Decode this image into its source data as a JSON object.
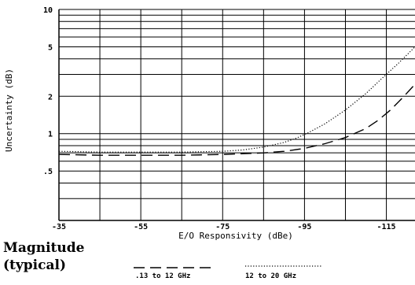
{
  "chart_data": {
    "type": "line",
    "title": "",
    "xlabel": "E/O Responsivity (dBe)",
    "ylabel": "Uncertainty (dB)",
    "x_ticks": [
      -35,
      -55,
      -75,
      -95,
      -115
    ],
    "x_tick_labels": [
      "-35",
      "-55",
      "-75",
      "-95",
      "-115"
    ],
    "y_tick_labels": [
      {
        "label": "10",
        "value": 10
      },
      {
        "label": "5",
        "value": 5
      },
      {
        "label": "2",
        "value": 2
      },
      {
        "label": "1",
        "value": 1
      },
      {
        "label": ".5",
        "value": 0.5
      }
    ],
    "y_scale": "log",
    "xlim": [
      -35,
      -122
    ],
    "ylim": [
      0.2,
      10
    ],
    "grid": true,
    "legend_placement": "bottom",
    "series": [
      {
        "name": ".13 to 12 GHz",
        "style": "dashed",
        "x": [
          -35,
          -45,
          -55,
          -65,
          -75,
          -85,
          -90,
          -95,
          -100,
          -105,
          -110,
          -113,
          -116,
          -119,
          -122
        ],
        "y": [
          0.68,
          0.67,
          0.67,
          0.67,
          0.68,
          0.7,
          0.72,
          0.76,
          0.83,
          0.93,
          1.1,
          1.28,
          1.55,
          1.95,
          2.5
        ]
      },
      {
        "name": "12 to 20 GHz",
        "style": "dotted",
        "x": [
          -35,
          -45,
          -55,
          -65,
          -75,
          -80,
          -85,
          -90,
          -93,
          -96,
          -100,
          -105,
          -110,
          -114,
          -118,
          -122
        ],
        "y": [
          0.72,
          0.71,
          0.71,
          0.71,
          0.72,
          0.74,
          0.78,
          0.85,
          0.92,
          1.02,
          1.2,
          1.55,
          2.1,
          2.8,
          3.7,
          5.0
        ]
      }
    ]
  },
  "caption": {
    "line1": "Magnitude",
    "line2": "(typical)"
  }
}
